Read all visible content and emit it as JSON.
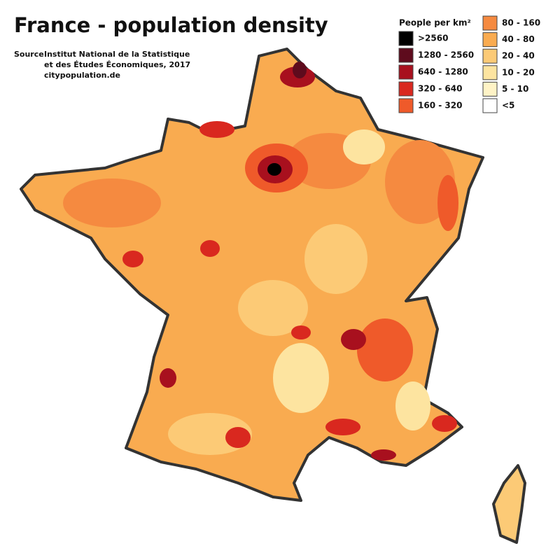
{
  "header": {
    "title": "France - population density",
    "source_label": "Source:",
    "source_lines": [
      "Institut National de la Statistique",
      "et des Études Économiques, 2017",
      "citypopulation.de"
    ]
  },
  "legend": {
    "title": "People per km²",
    "items": [
      {
        "label": ">2560",
        "color": "#000000"
      },
      {
        "label": "1280 - 2560",
        "color": "#5e0b1d"
      },
      {
        "label": "640 - 1280",
        "color": "#a8101e"
      },
      {
        "label": "320 - 640",
        "color": "#d9281f"
      },
      {
        "label": "160 - 320",
        "color": "#ef5a2a"
      },
      {
        "label": "80 - 160",
        "color": "#f58a40"
      },
      {
        "label": "40 - 80",
        "color": "#f9ab50"
      },
      {
        "label": "20 - 40",
        "color": "#fcca76"
      },
      {
        "label": "10 - 20",
        "color": "#fde4a0"
      },
      {
        "label": "5 - 10",
        "color": "#fff3c6"
      },
      {
        "label": "<5",
        "color": "#ffffff"
      }
    ]
  }
}
